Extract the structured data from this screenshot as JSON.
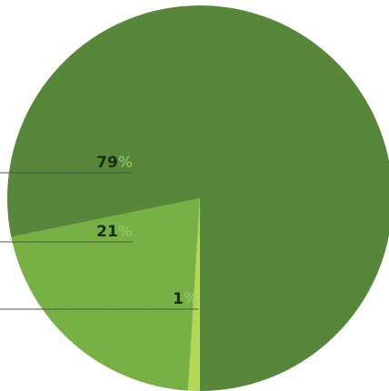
{
  "chart_data": {
    "type": "pie",
    "slices": [
      {
        "label": "79",
        "unit": "%",
        "value": 79,
        "color": "#5a8a3c"
      },
      {
        "label": "21",
        "unit": "%",
        "value": 21,
        "color": "#7ab547"
      },
      {
        "label": "1",
        "unit": "%",
        "value": 1,
        "color": "#b8dc58"
      }
    ],
    "legend": "none",
    "texture": "grainy"
  }
}
